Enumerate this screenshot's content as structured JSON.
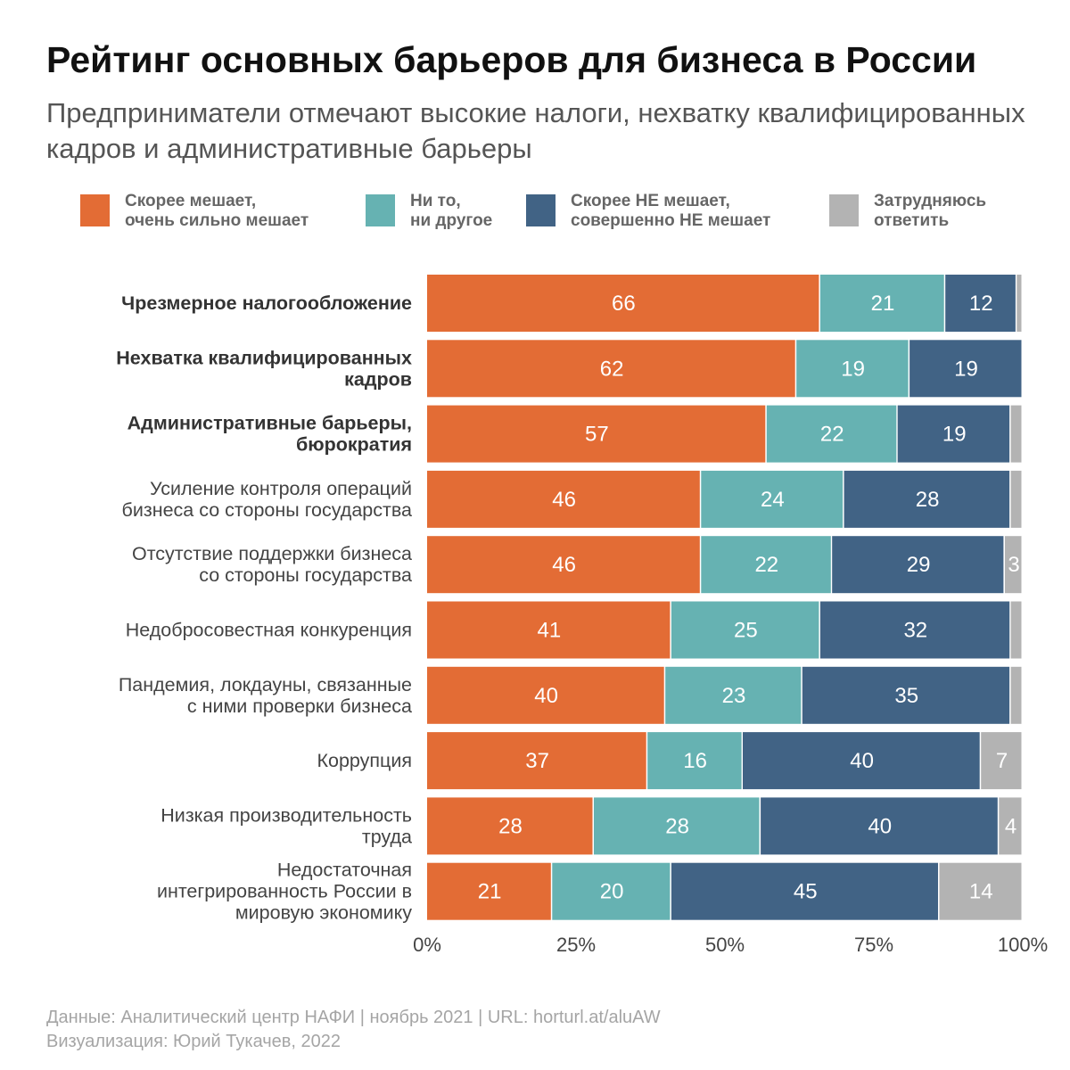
{
  "title": "Рейтинг основных барьеров для бизнеса в России",
  "subtitle": "Предприниматели отмечают высокие налоги, нехватку квалифицированных кадров и административные барьеры",
  "colors": {
    "hinders": "#E36C35",
    "neither": "#66B2B2",
    "not_hinders": "#416385",
    "hard_to_say": "#B3B3B3"
  },
  "legend": [
    {
      "label": "Скорее мешает,\nочень сильно мешает",
      "color": "#E36C35"
    },
    {
      "label": "Ни то,\nни другое",
      "color": "#66B2B2"
    },
    {
      "label": "Скорее НЕ мешает,\nсовершенно НЕ мешает",
      "color": "#416385"
    },
    {
      "label": "Затрудняюсь\nответить",
      "color": "#B3B3B3"
    }
  ],
  "chart_data": {
    "type": "bar",
    "orientation": "horizontal",
    "stacked": true,
    "xlim": [
      0,
      100
    ],
    "x_ticks": [
      "0%",
      "25%",
      "50%",
      "75%",
      "100%"
    ],
    "categories": [
      "Чрезмерное налогообложение",
      "Нехватка квалифицированных кадров",
      "Административные барьеры, бюрократия",
      "Усиление контроля операций бизнеса со стороны государства",
      "Отсутствие поддержки бизнеса со стороны государства",
      "Недобросовестная конкуренция",
      "Пандемия, локдауны, связанные с ними проверки бизнеса",
      "Коррупция",
      "Низкая производительность труда",
      "Недостаточная интегрированность России в мировую экономику"
    ],
    "category_lines": [
      [
        "Чрезмерное налогообложение"
      ],
      [
        "Нехватка квалифицированных",
        "кадров"
      ],
      [
        "Административные барьеры,",
        "бюрократия"
      ],
      [
        "Усиление контроля операций",
        "бизнеса со стороны государства"
      ],
      [
        "Отсутствие поддержки бизнеса",
        "со стороны государства"
      ],
      [
        "Недобросовестная конкуренция"
      ],
      [
        "Пандемия, локдауны, связанные",
        "с ними проверки бизнеса"
      ],
      [
        "Коррупция"
      ],
      [
        "Низкая производительность",
        "труда"
      ],
      [
        "Недостаточная",
        "интегрированность России в",
        "мировую экономику"
      ]
    ],
    "bold_categories": [
      0,
      1,
      2
    ],
    "series": [
      {
        "name": "Скорее мешает, очень сильно мешает",
        "values": [
          66,
          62,
          57,
          46,
          46,
          41,
          40,
          37,
          28,
          21
        ],
        "labels": [
          "66",
          "62",
          "57",
          "46",
          "46",
          "41",
          "40",
          "37",
          "28",
          "21"
        ]
      },
      {
        "name": "Ни то, ни другое",
        "values": [
          21,
          19,
          22,
          24,
          22,
          25,
          23,
          16,
          28,
          20
        ],
        "labels": [
          "21",
          "19",
          "22",
          "24",
          "22",
          "25",
          "23",
          "16",
          "28",
          "20"
        ]
      },
      {
        "name": "Скорее НЕ мешает, совершенно НЕ мешает",
        "values": [
          12,
          19,
          19,
          28,
          29,
          32,
          35,
          40,
          40,
          45
        ],
        "labels": [
          "12",
          "19",
          "19",
          "28",
          "29",
          "32",
          "35",
          "40",
          "40",
          "45"
        ]
      },
      {
        "name": "Затрудняюсь ответить",
        "values": [
          1,
          0,
          2,
          2,
          3,
          2,
          2,
          7,
          4,
          14
        ],
        "labels": [
          "",
          "",
          "",
          "",
          "3",
          "",
          "",
          "7",
          "4",
          "14"
        ]
      }
    ]
  },
  "source": {
    "line1": "Данные: Аналитический центр НАФИ | ноябрь 2021 | URL: horturl.at/aluAW",
    "line2": "Визуализация: Юрий Тукачев, 2022"
  }
}
